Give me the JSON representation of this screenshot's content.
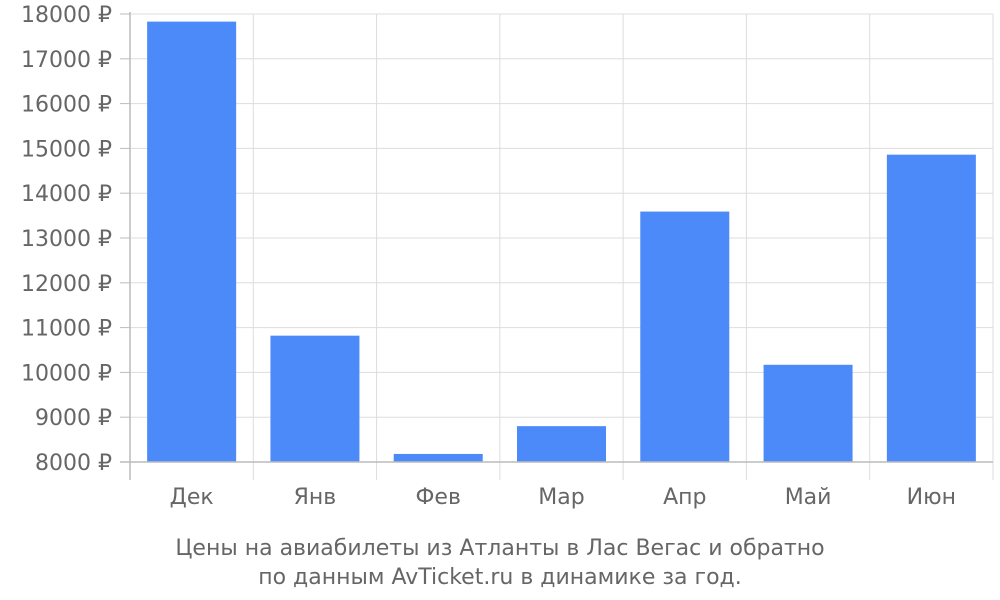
{
  "chart_data": {
    "type": "bar",
    "categories": [
      "Дек",
      "Янв",
      "Фев",
      "Мар",
      "Апр",
      "Май",
      "Июн"
    ],
    "values": [
      17830,
      10820,
      8180,
      8800,
      13590,
      10170,
      14860
    ],
    "ylim": [
      8000,
      18000
    ],
    "yticks": [
      8000,
      9000,
      10000,
      11000,
      12000,
      13000,
      14000,
      15000,
      16000,
      17000,
      18000
    ],
    "ytick_suffix": " ₽",
    "grid": true,
    "legend": "none",
    "caption_lines": [
      "Цены на авиабилеты из Атланты в Лас Вегас и обратно",
      "по данным AvTicket.ru в динамике за год."
    ],
    "colors": {
      "bar": "#4d8af9",
      "grid": "#dddddd",
      "axis": "#bbbbbb",
      "text": "#666666"
    }
  }
}
